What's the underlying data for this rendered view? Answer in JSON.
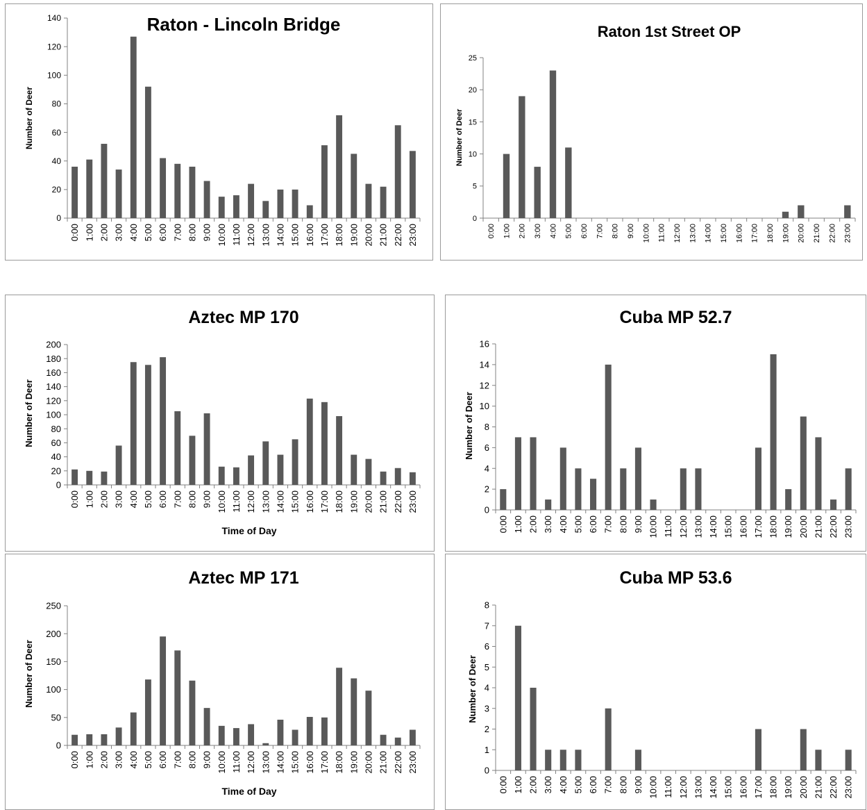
{
  "chart_data": [
    {
      "type": "bar",
      "title": "Raton - Lincoln Bridge",
      "xlabel": "",
      "ylabel": "Number of Deer",
      "ylim": [
        0,
        140
      ],
      "yticks": [
        0,
        20,
        40,
        60,
        80,
        100,
        120,
        140
      ],
      "grid": false,
      "categories": [
        "0:00",
        "1:00",
        "2:00",
        "3:00",
        "4:00",
        "5:00",
        "6:00",
        "7:00",
        "8:00",
        "9:00",
        "10:00",
        "11:00",
        "12:00",
        "13:00",
        "14:00",
        "15:00",
        "16:00",
        "17:00",
        "18:00",
        "19:00",
        "20:00",
        "21:00",
        "22:00",
        "23:00"
      ],
      "values": [
        36,
        41,
        52,
        34,
        127,
        92,
        42,
        38,
        36,
        26,
        15,
        16,
        24,
        12,
        20,
        20,
        9,
        51,
        72,
        45,
        24,
        22,
        65,
        47
      ]
    },
    {
      "type": "bar",
      "title": "Raton 1st Street OP",
      "xlabel": "",
      "ylabel": "Number of Deer",
      "ylim": [
        0,
        25
      ],
      "yticks": [
        0,
        5,
        10,
        15,
        20,
        25
      ],
      "grid": false,
      "categories": [
        "0:00",
        "1:00",
        "2:00",
        "3:00",
        "4:00",
        "5:00",
        "6:00",
        "7:00",
        "8:00",
        "9:00",
        "10:00",
        "11:00",
        "12:00",
        "13:00",
        "14:00",
        "15:00",
        "16:00",
        "17:00",
        "18:00",
        "19:00",
        "20:00",
        "21:00",
        "22:00",
        "23:00"
      ],
      "values": [
        0,
        10,
        19,
        8,
        23,
        11,
        0,
        0,
        0,
        0,
        0,
        0,
        0,
        0,
        0,
        0,
        0,
        0,
        0,
        1,
        2,
        0,
        0,
        2
      ]
    },
    {
      "type": "bar",
      "title": "Aztec MP 170",
      "xlabel": "Time of Day",
      "ylabel": "Number of Deer",
      "ylim": [
        0,
        200
      ],
      "yticks": [
        0,
        20,
        40,
        60,
        80,
        100,
        120,
        140,
        160,
        180,
        200
      ],
      "grid": false,
      "categories": [
        "0:00",
        "1:00",
        "2:00",
        "3:00",
        "4:00",
        "5:00",
        "6:00",
        "7:00",
        "8:00",
        "9:00",
        "10:00",
        "11:00",
        "12:00",
        "13:00",
        "14:00",
        "15:00",
        "16:00",
        "17:00",
        "18:00",
        "19:00",
        "20:00",
        "21:00",
        "22:00",
        "23:00"
      ],
      "values": [
        22,
        20,
        19,
        56,
        175,
        171,
        182,
        105,
        70,
        102,
        26,
        25,
        42,
        62,
        43,
        65,
        123,
        118,
        98,
        43,
        37,
        19,
        24,
        18
      ]
    },
    {
      "type": "bar",
      "title": "Cuba MP 52.7",
      "xlabel": "",
      "ylabel": "Number of Deer",
      "ylim": [
        0,
        16
      ],
      "yticks": [
        0,
        2,
        4,
        6,
        8,
        10,
        12,
        14,
        16
      ],
      "grid": false,
      "categories": [
        "0:00",
        "1:00",
        "2:00",
        "3:00",
        "4:00",
        "5:00",
        "6:00",
        "7:00",
        "8:00",
        "9:00",
        "10:00",
        "11:00",
        "12:00",
        "13:00",
        "14:00",
        "15:00",
        "16:00",
        "17:00",
        "18:00",
        "19:00",
        "20:00",
        "21:00",
        "22:00",
        "23:00"
      ],
      "values": [
        2,
        7,
        7,
        1,
        6,
        4,
        3,
        14,
        4,
        6,
        1,
        0,
        4,
        4,
        0,
        0,
        0,
        6,
        15,
        2,
        9,
        7,
        1,
        4
      ]
    },
    {
      "type": "bar",
      "title": "Aztec MP 171",
      "xlabel": "Time of Day",
      "ylabel": "Number of Deer",
      "ylim": [
        0,
        250
      ],
      "yticks": [
        0,
        50,
        100,
        150,
        200,
        250
      ],
      "grid": false,
      "categories": [
        "0:00",
        "1:00",
        "2:00",
        "3:00",
        "4:00",
        "5:00",
        "6:00",
        "7:00",
        "8:00",
        "9:00",
        "10:00",
        "11:00",
        "12:00",
        "13:00",
        "14:00",
        "15:00",
        "16:00",
        "17:00",
        "18:00",
        "19:00",
        "20:00",
        "21:00",
        "22:00",
        "23:00"
      ],
      "values": [
        19,
        20,
        20,
        32,
        59,
        118,
        195,
        170,
        116,
        67,
        35,
        31,
        38,
        4,
        46,
        28,
        51,
        50,
        139,
        120,
        98,
        19,
        14,
        28
      ]
    },
    {
      "type": "bar",
      "title": "Cuba MP 53.6",
      "xlabel": "",
      "ylabel": "Number of Deer",
      "ylim": [
        0,
        8
      ],
      "yticks": [
        0,
        1,
        2,
        3,
        4,
        5,
        6,
        7,
        8
      ],
      "grid": false,
      "categories": [
        "0:00",
        "1:00",
        "2:00",
        "3:00",
        "4:00",
        "5:00",
        "6:00",
        "7:00",
        "8:00",
        "9:00",
        "10:00",
        "11:00",
        "12:00",
        "13:00",
        "14:00",
        "15:00",
        "16:00",
        "17:00",
        "18:00",
        "19:00",
        "20:00",
        "21:00",
        "22:00",
        "23:00"
      ],
      "values": [
        0,
        7,
        4,
        1,
        1,
        1,
        0,
        3,
        0,
        1,
        0,
        0,
        0,
        0,
        0,
        0,
        0,
        2,
        0,
        0,
        2,
        1,
        0,
        1
      ]
    }
  ],
  "colors": {
    "bar": "#595959",
    "axis": "#808080",
    "border": "#9a9a9a"
  }
}
